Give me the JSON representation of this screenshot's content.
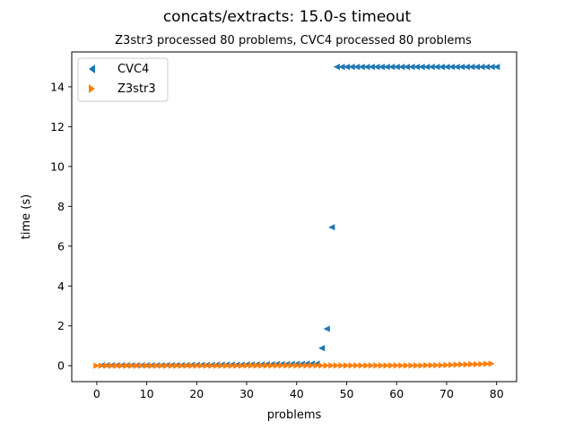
{
  "chart_data": {
    "type": "scatter",
    "title": "concats/extracts: 15.0-s timeout",
    "subtitle": "Z3str3 processed 80 problems, CVC4 processed 80 problems",
    "xlabel": "problems",
    "ylabel": "time (s)",
    "xlim": [
      -5,
      84
    ],
    "ylim": [
      -0.8,
      15.75
    ],
    "xticks": [
      0,
      10,
      20,
      30,
      40,
      50,
      60,
      70,
      80
    ],
    "yticks": [
      0,
      2,
      4,
      6,
      8,
      10,
      12,
      14
    ],
    "grid": false,
    "legend": "top-left",
    "series": [
      {
        "name": "CVC4",
        "marker": "triangle-left",
        "color": "#1f77b4",
        "points": [
          [
            1,
            0.02
          ],
          [
            2,
            0.02
          ],
          [
            3,
            0.02
          ],
          [
            4,
            0.02
          ],
          [
            5,
            0.02
          ],
          [
            6,
            0.02
          ],
          [
            7,
            0.02
          ],
          [
            8,
            0.02
          ],
          [
            9,
            0.02
          ],
          [
            10,
            0.02
          ],
          [
            11,
            0.02
          ],
          [
            12,
            0.02
          ],
          [
            13,
            0.02
          ],
          [
            14,
            0.03
          ],
          [
            15,
            0.03
          ],
          [
            16,
            0.03
          ],
          [
            17,
            0.03
          ],
          [
            18,
            0.03
          ],
          [
            19,
            0.04
          ],
          [
            20,
            0.04
          ],
          [
            21,
            0.04
          ],
          [
            22,
            0.04
          ],
          [
            23,
            0.04
          ],
          [
            24,
            0.05
          ],
          [
            25,
            0.05
          ],
          [
            26,
            0.05
          ],
          [
            27,
            0.05
          ],
          [
            28,
            0.05
          ],
          [
            29,
            0.05
          ],
          [
            30,
            0.06
          ],
          [
            31,
            0.06
          ],
          [
            32,
            0.06
          ],
          [
            33,
            0.06
          ],
          [
            34,
            0.07
          ],
          [
            35,
            0.07
          ],
          [
            36,
            0.08
          ],
          [
            37,
            0.08
          ],
          [
            38,
            0.08
          ],
          [
            39,
            0.09
          ],
          [
            40,
            0.09
          ],
          [
            41,
            0.09
          ],
          [
            42,
            0.1
          ],
          [
            43,
            0.1
          ],
          [
            44,
            0.1
          ],
          [
            45,
            0.88
          ],
          [
            46,
            1.85
          ],
          [
            47,
            6.95
          ],
          [
            48,
            15.0
          ],
          [
            49,
            15.0
          ],
          [
            50,
            15.0
          ],
          [
            51,
            15.0
          ],
          [
            52,
            15.0
          ],
          [
            53,
            15.0
          ],
          [
            54,
            15.0
          ],
          [
            55,
            15.0
          ],
          [
            56,
            15.0
          ],
          [
            57,
            15.0
          ],
          [
            58,
            15.0
          ],
          [
            59,
            15.0
          ],
          [
            60,
            15.0
          ],
          [
            61,
            15.0
          ],
          [
            62,
            15.0
          ],
          [
            63,
            15.0
          ],
          [
            64,
            15.0
          ],
          [
            65,
            15.0
          ],
          [
            66,
            15.0
          ],
          [
            67,
            15.0
          ],
          [
            68,
            15.0
          ],
          [
            69,
            15.0
          ],
          [
            70,
            15.0
          ],
          [
            71,
            15.0
          ],
          [
            72,
            15.0
          ],
          [
            73,
            15.0
          ],
          [
            74,
            15.0
          ],
          [
            75,
            15.0
          ],
          [
            76,
            15.0
          ],
          [
            77,
            15.0
          ],
          [
            78,
            15.0
          ],
          [
            79,
            15.0
          ],
          [
            80,
            15.0
          ]
        ]
      },
      {
        "name": "Z3str3",
        "marker": "triangle-right",
        "color": "#ff7f0e",
        "points": [
          [
            0,
            0.0
          ],
          [
            1,
            0.0
          ],
          [
            2,
            0.0
          ],
          [
            3,
            0.0
          ],
          [
            4,
            0.0
          ],
          [
            5,
            0.0
          ],
          [
            6,
            0.0
          ],
          [
            7,
            0.0
          ],
          [
            8,
            0.0
          ],
          [
            9,
            0.0
          ],
          [
            10,
            0.0
          ],
          [
            11,
            0.0
          ],
          [
            12,
            0.0
          ],
          [
            13,
            0.0
          ],
          [
            14,
            0.0
          ],
          [
            15,
            0.0
          ],
          [
            16,
            0.0
          ],
          [
            17,
            0.0
          ],
          [
            18,
            0.0
          ],
          [
            19,
            0.0
          ],
          [
            20,
            0.0
          ],
          [
            21,
            0.0
          ],
          [
            22,
            0.0
          ],
          [
            23,
            0.0
          ],
          [
            24,
            0.0
          ],
          [
            25,
            0.0
          ],
          [
            26,
            0.0
          ],
          [
            27,
            0.0
          ],
          [
            28,
            0.0
          ],
          [
            29,
            0.0
          ],
          [
            30,
            0.01
          ],
          [
            31,
            0.01
          ],
          [
            32,
            0.01
          ],
          [
            33,
            0.01
          ],
          [
            34,
            0.01
          ],
          [
            35,
            0.01
          ],
          [
            36,
            0.01
          ],
          [
            37,
            0.01
          ],
          [
            38,
            0.01
          ],
          [
            39,
            0.01
          ],
          [
            40,
            0.01
          ],
          [
            41,
            0.01
          ],
          [
            42,
            0.01
          ],
          [
            43,
            0.01
          ],
          [
            44,
            0.01
          ],
          [
            45,
            0.01
          ],
          [
            46,
            0.01
          ],
          [
            47,
            0.01
          ],
          [
            48,
            0.01
          ],
          [
            49,
            0.01
          ],
          [
            50,
            0.01
          ],
          [
            51,
            0.01
          ],
          [
            52,
            0.01
          ],
          [
            53,
            0.01
          ],
          [
            54,
            0.01
          ],
          [
            55,
            0.01
          ],
          [
            56,
            0.01
          ],
          [
            57,
            0.01
          ],
          [
            58,
            0.01
          ],
          [
            59,
            0.01
          ],
          [
            60,
            0.01
          ],
          [
            61,
            0.01
          ],
          [
            62,
            0.01
          ],
          [
            63,
            0.01
          ],
          [
            64,
            0.01
          ],
          [
            65,
            0.01
          ],
          [
            66,
            0.02
          ],
          [
            67,
            0.02
          ],
          [
            68,
            0.02
          ],
          [
            69,
            0.02
          ],
          [
            70,
            0.03
          ],
          [
            71,
            0.04
          ],
          [
            72,
            0.05
          ],
          [
            73,
            0.06
          ],
          [
            74,
            0.06
          ],
          [
            75,
            0.07
          ],
          [
            76,
            0.07
          ],
          [
            77,
            0.08
          ],
          [
            78,
            0.09
          ],
          [
            79,
            0.1
          ]
        ]
      }
    ]
  }
}
